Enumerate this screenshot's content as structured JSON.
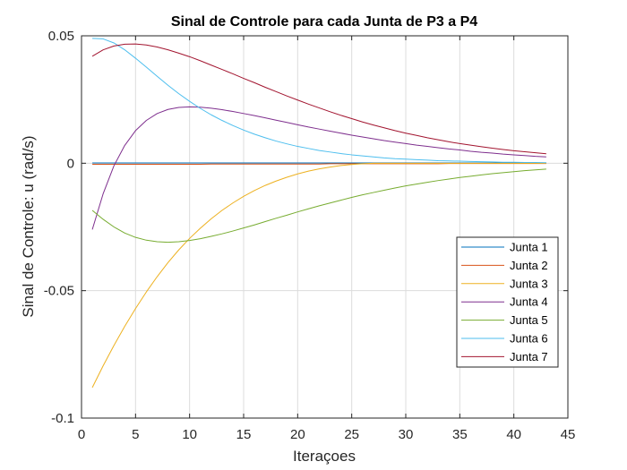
{
  "chart_data": {
    "type": "line",
    "title": "Sinal de Controle para cada Junta de P3 a P4",
    "xlabel": "Iteraçoes",
    "ylabel": "Sinal de Controle: u (rad/s)",
    "xlim": [
      0,
      45
    ],
    "ylim": [
      -0.1,
      0.05
    ],
    "xticks": [
      0,
      5,
      10,
      15,
      20,
      25,
      30,
      35,
      40,
      45
    ],
    "xtick_labels": [
      "0",
      "5",
      "10",
      "15",
      "20",
      "25",
      "30",
      "35",
      "40",
      "45"
    ],
    "yticks": [
      -0.1,
      -0.05,
      0,
      0.05
    ],
    "ytick_labels": [
      "-0.1",
      "-0.05",
      "0",
      "0.05"
    ],
    "grid": true,
    "legend_position": "right",
    "x": [
      1,
      2,
      3,
      4,
      5,
      6,
      7,
      8,
      9,
      10,
      11,
      12,
      13,
      14,
      15,
      16,
      17,
      18,
      19,
      20,
      21,
      22,
      23,
      24,
      25,
      26,
      27,
      28,
      29,
      30,
      31,
      32,
      33,
      34,
      35,
      36,
      37,
      38,
      39,
      40,
      41,
      42,
      43
    ],
    "series": [
      {
        "name": "Junta 1",
        "color": "#0072BD",
        "values": [
          0.0001,
          0.0001,
          0.0001,
          0.0001,
          0.0001,
          0.0001,
          0.0001,
          0.0001,
          0.0001,
          0.0001,
          0.0001,
          0.0001,
          0.0001,
          0.0001,
          0.0001,
          0.0001,
          0.0001,
          0.0001,
          0.0001,
          0.0001,
          0.0001,
          0.0001,
          0.0001,
          0.0001,
          0.0001,
          0.0001,
          0.0001,
          0.0001,
          0.0001,
          0.0001,
          0.0001,
          0.0001,
          0.0001,
          0.0001,
          0.0001,
          0.0001,
          0.0001,
          0.0001,
          0.0001,
          0.0001,
          0.0001,
          0.0001,
          0.0001
        ]
      },
      {
        "name": "Junta 2",
        "color": "#D95319",
        "values": [
          -0.0004,
          -0.0004,
          -0.0004,
          -0.0004,
          -0.0004,
          -0.0004,
          -0.0004,
          -0.0004,
          -0.0004,
          -0.0004,
          -0.0004,
          -0.0003,
          -0.0003,
          -0.0003,
          -0.0003,
          -0.0003,
          -0.0003,
          -0.0003,
          -0.0003,
          -0.0003,
          -0.0003,
          -0.0003,
          -0.0002,
          -0.0002,
          -0.0002,
          -0.0002,
          -0.0002,
          -0.0002,
          -0.0002,
          -0.0002,
          -0.0002,
          -0.0002,
          -0.0002,
          -0.0001,
          -0.0001,
          -0.0001,
          -0.0001,
          -0.0001,
          -0.0001,
          -0.0001,
          -0.0001,
          -0.0001,
          -0.0001
        ]
      },
      {
        "name": "Junta 3",
        "color": "#EDB120",
        "values": [
          -0.088,
          -0.0795,
          -0.0715,
          -0.064,
          -0.057,
          -0.0505,
          -0.0445,
          -0.039,
          -0.034,
          -0.0295,
          -0.0255,
          -0.0218,
          -0.0185,
          -0.0156,
          -0.013,
          -0.0107,
          -0.0087,
          -0.007,
          -0.0055,
          -0.0042,
          -0.0031,
          -0.0022,
          -0.0015,
          -0.0009,
          -0.0005,
          -0.0002,
          0.0,
          0.0,
          0.0,
          0.0,
          0.0,
          0.0,
          0.0,
          0.0,
          0.0,
          0.0,
          0.0,
          0.0,
          0.0,
          0.0,
          0.0,
          0.0,
          0.0
        ]
      },
      {
        "name": "Junta 4",
        "color": "#7E2F8E",
        "values": [
          -0.026,
          -0.012,
          -0.001,
          0.007,
          0.0128,
          0.0168,
          0.0195,
          0.0211,
          0.0219,
          0.0221,
          0.022,
          0.0216,
          0.021,
          0.0203,
          0.0195,
          0.0187,
          0.0178,
          0.0169,
          0.016,
          0.0151,
          0.0142,
          0.0134,
          0.0126,
          0.0118,
          0.011,
          0.0103,
          0.0096,
          0.0089,
          0.0083,
          0.0077,
          0.0071,
          0.0066,
          0.0061,
          0.0056,
          0.0052,
          0.0047,
          0.0043,
          0.004,
          0.0036,
          0.0033,
          0.003,
          0.0027,
          0.0025
        ]
      },
      {
        "name": "Junta 5",
        "color": "#77AC30",
        "values": [
          -0.0185,
          -0.022,
          -0.025,
          -0.0274,
          -0.0291,
          -0.0302,
          -0.0308,
          -0.031,
          -0.0308,
          -0.0303,
          -0.0296,
          -0.0287,
          -0.0277,
          -0.0266,
          -0.0254,
          -0.0242,
          -0.0229,
          -0.0216,
          -0.0204,
          -0.0191,
          -0.0179,
          -0.0167,
          -0.0156,
          -0.0145,
          -0.0134,
          -0.0124,
          -0.0115,
          -0.0106,
          -0.0097,
          -0.0089,
          -0.0082,
          -0.0075,
          -0.0068,
          -0.0062,
          -0.0056,
          -0.0051,
          -0.0046,
          -0.0041,
          -0.0037,
          -0.0033,
          -0.0029,
          -0.0026,
          -0.0023
        ]
      },
      {
        "name": "Junta 6",
        "color": "#4DBEEE",
        "values": [
          0.049,
          0.0488,
          0.0472,
          0.0445,
          0.0412,
          0.0377,
          0.0341,
          0.0306,
          0.0273,
          0.0243,
          0.0215,
          0.019,
          0.0168,
          0.0148,
          0.013,
          0.0114,
          0.01,
          0.0087,
          0.0076,
          0.0066,
          0.0058,
          0.005,
          0.0044,
          0.0038,
          0.0033,
          0.0029,
          0.0025,
          0.0021,
          0.0018,
          0.0016,
          0.0014,
          0.0012,
          0.001,
          0.0009,
          0.0008,
          0.0007,
          0.0006,
          0.0005,
          0.0004,
          0.0004,
          0.0003,
          0.0003,
          0.0002
        ]
      },
      {
        "name": "Junta 7",
        "color": "#A2142F",
        "values": [
          0.042,
          0.0445,
          0.046,
          0.0467,
          0.0468,
          0.0464,
          0.0456,
          0.0445,
          0.0432,
          0.0418,
          0.0402,
          0.0385,
          0.0368,
          0.0351,
          0.0333,
          0.0316,
          0.0298,
          0.0281,
          0.0264,
          0.0248,
          0.0232,
          0.0217,
          0.0202,
          0.0188,
          0.0175,
          0.0162,
          0.015,
          0.0139,
          0.0128,
          0.0118,
          0.0109,
          0.01,
          0.0092,
          0.0084,
          0.0077,
          0.0071,
          0.0065,
          0.0059,
          0.0054,
          0.0049,
          0.0045,
          0.0041,
          0.0037
        ]
      }
    ]
  }
}
